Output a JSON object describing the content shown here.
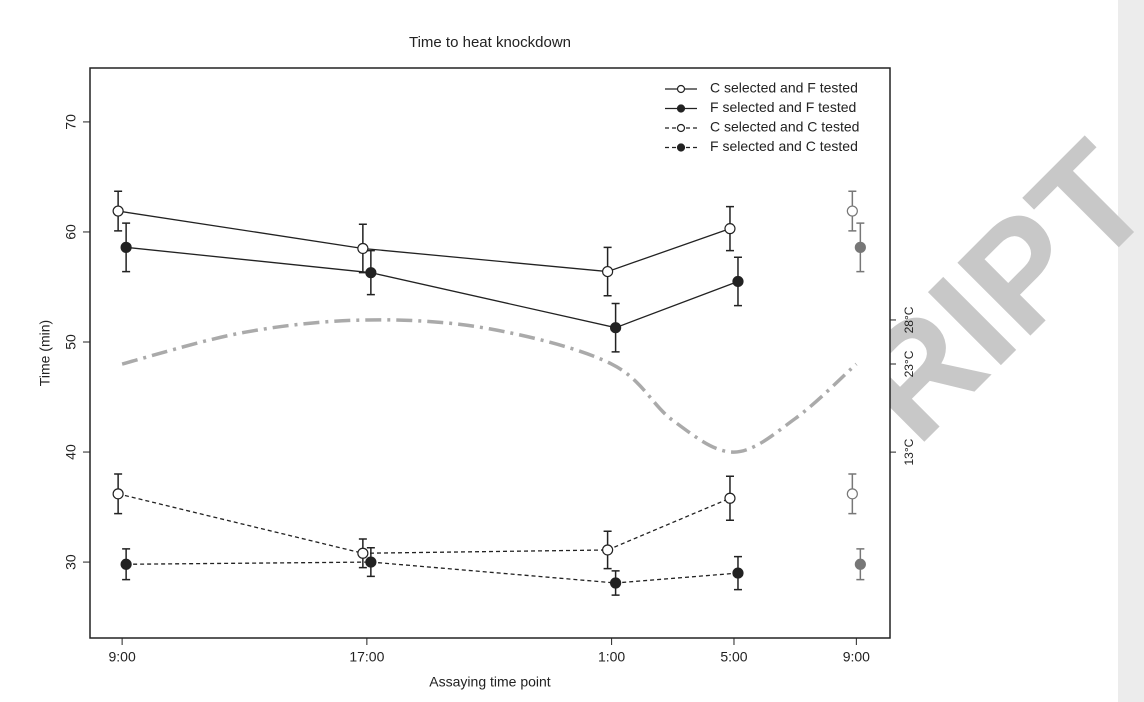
{
  "chart_data": {
    "type": "line",
    "title": "Time to heat knockdown",
    "xlabel": "Assaying time point",
    "ylabel": "Time (min)",
    "watermark": "RIPT",
    "xlim": [
      -1.05,
      25.1
    ],
    "xticks": [
      {
        "value": 0,
        "label": "9:00"
      },
      {
        "value": 8,
        "label": "17:00"
      },
      {
        "value": 16,
        "label": "1:00"
      },
      {
        "value": 20,
        "label": "5:00"
      },
      {
        "value": 24,
        "label": "9:00"
      }
    ],
    "ylim": [
      23.1,
      74.9
    ],
    "yticks": [
      30,
      40,
      50,
      60,
      70
    ],
    "y2lim": [
      -8.1,
      56.6
    ],
    "y2ticks": [
      {
        "value": 13,
        "label": "13°C"
      },
      {
        "value": 23,
        "label": "23°C"
      },
      {
        "value": 28,
        "label": "28°C"
      }
    ],
    "x": [
      0,
      8,
      16,
      20
    ],
    "series": [
      {
        "name": "C selected and F tested",
        "color": "#222222",
        "marker": "open",
        "dash": "solid",
        "values": [
          61.9,
          58.5,
          56.4,
          60.3
        ],
        "errors": [
          1.8,
          2.2,
          2.2,
          2.0
        ],
        "repeat_x": 24,
        "repeat_value": 61.9,
        "repeat_error": 1.8,
        "repeat_color": "#777777"
      },
      {
        "name": "F selected and F tested",
        "color": "#222222",
        "marker": "filled",
        "dash": "solid",
        "values": [
          58.6,
          56.3,
          51.3,
          55.5
        ],
        "errors": [
          2.2,
          2.0,
          2.2,
          2.2
        ],
        "repeat_x": 24,
        "repeat_value": 58.6,
        "repeat_error": 2.2,
        "repeat_color": "#777777"
      },
      {
        "name": "C selected and C tested",
        "color": "#222222",
        "marker": "open",
        "dash": "dashed",
        "values": [
          36.2,
          30.8,
          31.1,
          35.8
        ],
        "errors": [
          1.8,
          1.3,
          1.7,
          2.0
        ],
        "repeat_x": 24,
        "repeat_value": 36.2,
        "repeat_error": 1.8,
        "repeat_color": "#777777"
      },
      {
        "name": "F selected and C tested",
        "color": "#222222",
        "marker": "filled",
        "dash": "dashed",
        "values": [
          29.8,
          30.0,
          28.1,
          29.0
        ],
        "errors": [
          1.4,
          1.3,
          1.1,
          1.5
        ],
        "repeat_x": 24,
        "repeat_value": 29.8,
        "repeat_error": 1.4,
        "repeat_color": "#777777"
      }
    ],
    "temperature": {
      "axis": "y2",
      "color": "#aaaaaa",
      "x": [
        0,
        4,
        8,
        12,
        16,
        18,
        20,
        22,
        24
      ],
      "values": [
        23,
        26.6,
        28,
        27.0,
        23,
        16.6,
        13,
        16.8,
        23
      ]
    },
    "legend": "top-right"
  }
}
